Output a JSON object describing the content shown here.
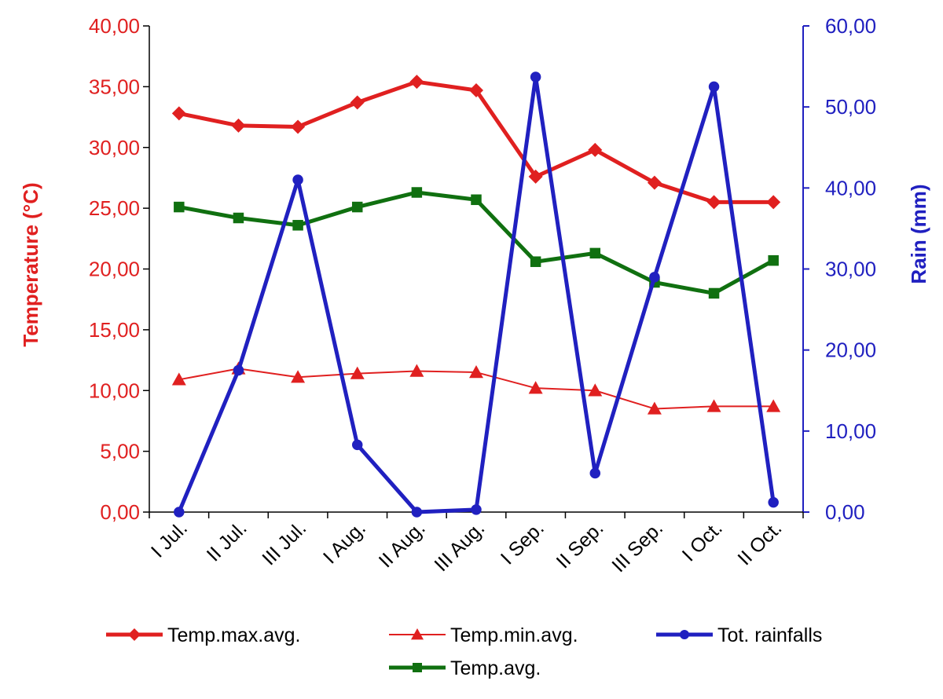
{
  "chart_data": {
    "type": "line",
    "title": "",
    "categories": [
      "I Jul.",
      "II Jul.",
      "III Jul.",
      "I Aug.",
      "II Aug.",
      "III Aug.",
      "I Sep.",
      "II Sep.",
      "III Sep.",
      "I Oct.",
      "II Oct."
    ],
    "y_left": {
      "label": "Temperature (°C)",
      "range": [
        0,
        40
      ],
      "ticks": [
        "0,00",
        "5,00",
        "10,00",
        "15,00",
        "20,00",
        "25,00",
        "30,00",
        "35,00",
        "40,00"
      ],
      "color": "#e02020"
    },
    "y_right": {
      "label": "Rain (mm)",
      "range": [
        0,
        60
      ],
      "ticks": [
        "0,00",
        "10,00",
        "20,00",
        "30,00",
        "40,00",
        "50,00",
        "60,00"
      ],
      "color": "#2020c0"
    },
    "series": [
      {
        "name": "Temp.max.avg.",
        "axis": "left",
        "color": "#e02020",
        "marker": "diamond",
        "width": "thick",
        "values": [
          32.8,
          31.8,
          31.7,
          33.7,
          35.4,
          34.7,
          27.6,
          29.8,
          27.1,
          25.5,
          25.5
        ]
      },
      {
        "name": "Temp.min.avg.",
        "axis": "left",
        "color": "#e02020",
        "marker": "triangle",
        "width": "thin",
        "values": [
          10.9,
          11.8,
          11.1,
          11.4,
          11.6,
          11.5,
          10.2,
          10.0,
          8.5,
          8.7,
          8.7
        ]
      },
      {
        "name": "Tot. rainfalls",
        "axis": "right",
        "color": "#2020c0",
        "marker": "circle",
        "width": "thick",
        "values": [
          0.0,
          17.5,
          41.0,
          8.3,
          0.0,
          0.3,
          53.7,
          4.8,
          29.0,
          52.5,
          1.2
        ]
      },
      {
        "name": "Temp.avg.",
        "axis": "left",
        "color": "#107010",
        "marker": "square",
        "width": "thick",
        "values": [
          25.1,
          24.2,
          23.6,
          25.1,
          26.3,
          25.7,
          20.6,
          21.3,
          18.9,
          18.0,
          20.7
        ]
      }
    ],
    "legend": "bottom",
    "grid": false
  }
}
